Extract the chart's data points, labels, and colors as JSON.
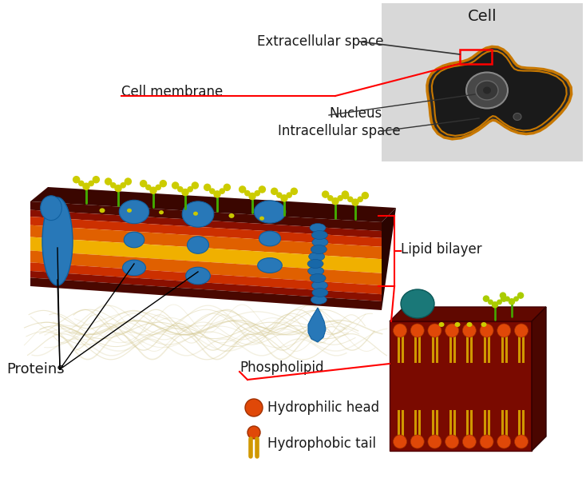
{
  "labels": {
    "cell": "Cell",
    "extracellular_space": "Extracellular space",
    "cell_membrane": "Cell membrane",
    "nucleus": "Nucleus",
    "intracellular_space": "Intracellular space",
    "lipid_bilayer": "Lipid bilayer",
    "proteins": "Proteins",
    "phospholipid": "Phospholipid",
    "hydrophilic_head": "Hydrophilic head",
    "hydrophobic_tail": "Hydrophobic tail"
  },
  "colors": {
    "background": "#ffffff",
    "membrane_dark": "#4a0800",
    "membrane_red": "#aa1000",
    "membrane_orange": "#d45800",
    "membrane_yellow": "#f0c000",
    "protein_blue": "#2878b8",
    "protein_teal": "#207878",
    "glycan_green": "#44aa00",
    "glycan_yellow": "#cccc00",
    "phospholipid_head": "#e04808",
    "phospholipid_tail": "#d09800",
    "cell_outline": "#c87800",
    "cell_bg": "#d0d0d0",
    "red_line": "#cc0000",
    "text_color": "#1a1a1a",
    "fiber_color": "#d4c890"
  },
  "fontsize": {
    "label": 12,
    "cell_title": 14
  }
}
